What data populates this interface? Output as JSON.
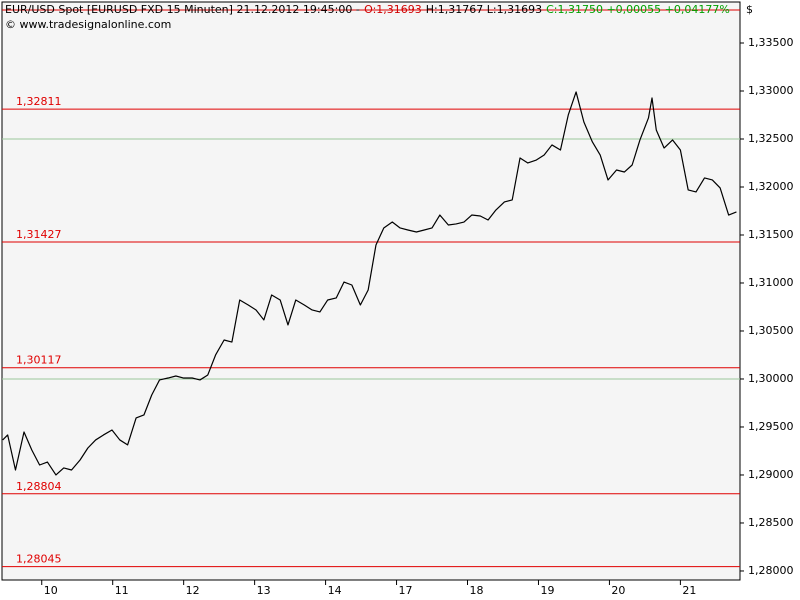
{
  "chart_data": {
    "type": "line",
    "header": {
      "instrument": "EUR/USD Spot [EURUSD FXD  15 Minuten] 21.12.2012 19:45:00 -",
      "open": "O:1,31693",
      "high_low": "H:1,31767 L:1,31693",
      "close_change": "C:1,31750 +0,00055 +0,04177%"
    },
    "source": "© www.tradesignalonline.com",
    "currency": "$",
    "xlim": [
      -0.56,
      9.84
    ],
    "xticks": [
      {
        "value": 0,
        "label": "10"
      },
      {
        "value": 1,
        "label": "11"
      },
      {
        "value": 2,
        "label": "12"
      },
      {
        "value": 3,
        "label": "13"
      },
      {
        "value": 4,
        "label": "14"
      },
      {
        "value": 5,
        "label": "17"
      },
      {
        "value": 6,
        "label": "18"
      },
      {
        "value": 7,
        "label": "19"
      },
      {
        "value": 8,
        "label": "20"
      },
      {
        "value": 9,
        "label": "21"
      }
    ],
    "ylim": [
      1.27906,
      1.33927
    ],
    "yticks": [
      {
        "value": 1.335,
        "label": "1,33500"
      },
      {
        "value": 1.33,
        "label": "1,33000"
      },
      {
        "value": 1.325,
        "label": "1,32500"
      },
      {
        "value": 1.32,
        "label": "1,32000"
      },
      {
        "value": 1.315,
        "label": "1,31500"
      },
      {
        "value": 1.31,
        "label": "1,31000"
      },
      {
        "value": 1.305,
        "label": "1,30500"
      },
      {
        "value": 1.3,
        "label": "1,30000"
      },
      {
        "value": 1.295,
        "label": "1,29500"
      },
      {
        "value": 1.29,
        "label": "1,29000"
      },
      {
        "value": 1.285,
        "label": "1,28500"
      },
      {
        "value": 1.28,
        "label": "1,28000"
      }
    ],
    "levels": [
      {
        "value": 1.33844
      },
      {
        "value": 1.32811,
        "label": "1,32811"
      },
      {
        "value": 1.31427,
        "label": "1,31427"
      },
      {
        "value": 1.30117,
        "label": "1,30117"
      },
      {
        "value": 1.28804,
        "label": "1,28804"
      },
      {
        "value": 1.28045,
        "label": "1,28045"
      }
    ],
    "level_color": "#e00000",
    "reference_lines": [
      1.325,
      1.3
    ],
    "reference_color": "#9cc89c",
    "series": [
      {
        "name": "EUR/USD",
        "color": "#000000",
        "x": [
          -0.55,
          -0.48,
          -0.37,
          -0.25,
          -0.14,
          -0.03,
          0.08,
          0.2,
          0.31,
          0.42,
          0.54,
          0.65,
          0.76,
          0.87,
          0.99,
          1.1,
          1.21,
          1.33,
          1.44,
          1.55,
          1.66,
          1.78,
          1.89,
          2.0,
          2.12,
          2.23,
          2.34,
          2.45,
          2.57,
          2.68,
          2.79,
          2.91,
          3.02,
          3.13,
          3.24,
          3.36,
          3.47,
          3.58,
          3.7,
          3.81,
          3.92,
          4.03,
          4.15,
          4.26,
          4.37,
          4.49,
          4.6,
          4.71,
          4.82,
          4.94,
          5.05,
          5.16,
          5.28,
          5.39,
          5.5,
          5.61,
          5.73,
          5.84,
          5.95,
          6.06,
          6.18,
          6.29,
          6.4,
          6.52,
          6.63,
          6.74,
          6.85,
          6.97,
          7.08,
          7.19,
          7.31,
          7.42,
          7.53,
          7.64,
          7.76,
          7.87,
          7.98,
          8.1,
          8.21,
          8.32,
          8.43,
          8.55,
          8.6,
          8.66,
          8.77,
          8.89,
          9.0,
          9.11,
          9.22,
          9.34,
          9.45,
          9.56,
          9.68,
          9.79
        ],
        "values": [
          1.29365,
          1.29417,
          1.29052,
          1.29448,
          1.2926,
          1.29104,
          1.29135,
          1.29,
          1.29073,
          1.29052,
          1.29156,
          1.29281,
          1.29365,
          1.29417,
          1.29469,
          1.29365,
          1.29313,
          1.29594,
          1.29625,
          1.29833,
          1.2999,
          1.3001,
          1.30031,
          1.3001,
          1.3001,
          1.2999,
          1.30042,
          1.3025,
          1.30406,
          1.30385,
          1.30823,
          1.30771,
          1.30719,
          1.30615,
          1.30875,
          1.30823,
          1.30563,
          1.30823,
          1.30771,
          1.30719,
          1.30698,
          1.30823,
          1.30844,
          1.3101,
          1.30979,
          1.30771,
          1.30927,
          1.31396,
          1.31573,
          1.31635,
          1.31573,
          1.31552,
          1.31531,
          1.31552,
          1.31573,
          1.31708,
          1.31604,
          1.31615,
          1.31635,
          1.31708,
          1.31698,
          1.31656,
          1.3176,
          1.31844,
          1.31865,
          1.32302,
          1.3225,
          1.32281,
          1.32333,
          1.32438,
          1.32385,
          1.3275,
          1.3299,
          1.32677,
          1.32469,
          1.32333,
          1.32073,
          1.32177,
          1.32156,
          1.32229,
          1.3249,
          1.32719,
          1.32927,
          1.32594,
          1.32406,
          1.3249,
          1.32385,
          1.31969,
          1.31948,
          1.32094,
          1.32073,
          1.3199,
          1.31708,
          1.3174
        ]
      }
    ]
  }
}
